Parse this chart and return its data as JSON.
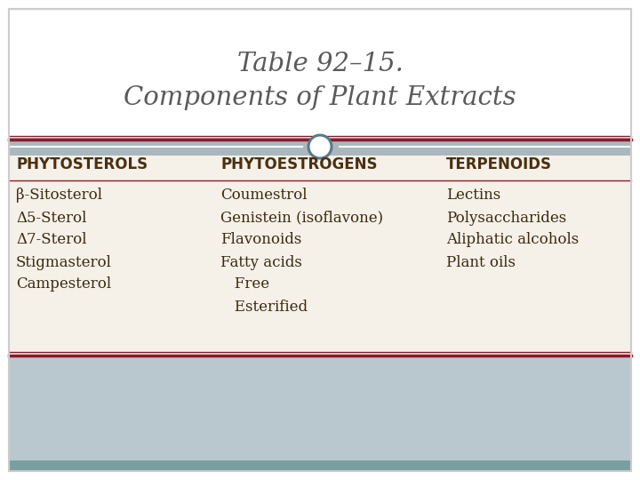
{
  "title_line1": "Table 92–15.",
  "title_line2": "Components of Plant Extracts",
  "title_color": "#5a5a5a",
  "bg_top": "#ffffff",
  "bg_table": "#f5f0e8",
  "bg_bottom": "#b8c8ce",
  "bg_footer": "#7a9fa0",
  "border_color_dark": "#8b1a2a",
  "col1_header": "PHYTOSTEROLS",
  "col2_header": "PHYTOESTROGENS",
  "col3_header": "TERPENOIDS",
  "col1_items": [
    "β-Sitosterol",
    "Δ5-Sterol",
    "Δ7-Sterol",
    "Stigmasterol",
    "Campesterol"
  ],
  "col2_items": [
    "Coumestrol",
    "Genistein (isoflavone)",
    "Flavonoids",
    "Fatty acids",
    "   Free",
    "   Esterified"
  ],
  "col3_items": [
    "Lectins",
    "Polysaccharides",
    "Aliphatic alcohols",
    "Plant oils"
  ],
  "header_color": "#4a3010",
  "item_color": "#3a2a10",
  "circle_edge_color": "#5a7a8a",
  "separator_gray": "#aab8be",
  "outer_border_color": "#cccccc"
}
